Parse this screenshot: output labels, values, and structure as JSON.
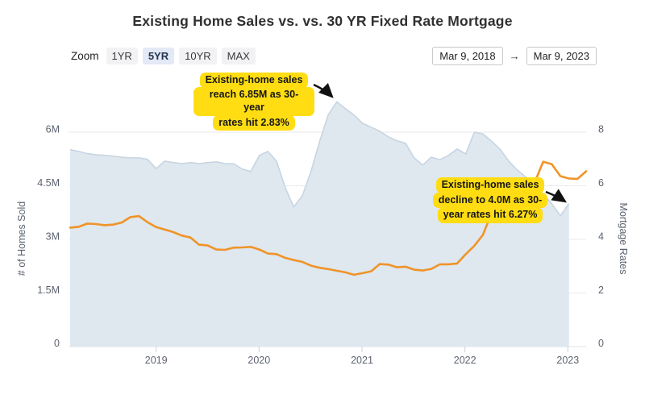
{
  "title": "Existing Home Sales vs. vs. 30 YR Fixed Rate Mortgage",
  "toolbar": {
    "zoom_label": "Zoom",
    "range_buttons": [
      {
        "label": "1YR",
        "selected": false
      },
      {
        "label": "5YR",
        "selected": true
      },
      {
        "label": "10YR",
        "selected": false
      },
      {
        "label": "MAX",
        "selected": false
      }
    ],
    "date_from": "Mar 9, 2018",
    "date_arrow": "→",
    "date_to": "Mar 9, 2023"
  },
  "chart_data": {
    "type": "mixed",
    "frequency": "monthly",
    "x_start": "2018-03",
    "x_end": "2023-03",
    "grid": "horizontal only",
    "legend": "none",
    "x_axis": {
      "ticks": [
        "2019",
        "2020",
        "2021",
        "2022",
        "2023"
      ]
    },
    "left_axis": {
      "label": "# of Homes Sold",
      "ticks": [
        "0",
        "1.5M",
        "3M",
        "4.5M",
        "6M"
      ],
      "ticks_values": [
        0,
        1.5,
        3,
        4.5,
        6
      ],
      "range": [
        0,
        7.5
      ],
      "unit": "millions of homes"
    },
    "right_axis": {
      "label": "Mortgage Rates",
      "ticks": [
        "0",
        "2",
        "4",
        "6",
        "8"
      ],
      "ticks_values": [
        0,
        2,
        4,
        6,
        8
      ],
      "range": [
        0,
        10
      ],
      "unit": "percent"
    },
    "series": [
      {
        "name": "Existing Home Sales",
        "type": "area",
        "axis": "left",
        "fill_color": "#dfe7ef",
        "line_color": "#c7d5e2",
        "values": [
          5.51,
          5.46,
          5.4,
          5.37,
          5.35,
          5.33,
          5.3,
          5.28,
          5.28,
          5.24,
          4.98,
          5.19,
          5.15,
          5.12,
          5.15,
          5.12,
          5.15,
          5.17,
          5.12,
          5.12,
          4.97,
          4.9,
          5.35,
          5.46,
          5.19,
          4.45,
          3.91,
          4.22,
          4.9,
          5.73,
          6.48,
          6.85,
          6.66,
          6.48,
          6.25,
          6.14,
          6.03,
          5.87,
          5.76,
          5.69,
          5.28,
          5.08,
          5.3,
          5.23,
          5.35,
          5.53,
          5.39,
          6.0,
          5.95,
          5.75,
          5.52,
          5.19,
          4.94,
          4.74,
          4.49,
          4.27,
          4.0,
          3.66,
          4.0
        ]
      },
      {
        "name": "30 YR Fixed Rate Mortgage",
        "type": "line",
        "axis": "right",
        "line_color": "#ef9428",
        "values": [
          4.44,
          4.47,
          4.59,
          4.57,
          4.53,
          4.55,
          4.63,
          4.83,
          4.87,
          4.64,
          4.46,
          4.37,
          4.27,
          4.14,
          4.07,
          3.8,
          3.77,
          3.62,
          3.61,
          3.69,
          3.7,
          3.72,
          3.62,
          3.47,
          3.45,
          3.31,
          3.23,
          3.16,
          3.02,
          2.94,
          2.89,
          2.83,
          2.77,
          2.68,
          2.74,
          2.81,
          3.08,
          3.06,
          2.96,
          2.98,
          2.87,
          2.84,
          2.9,
          3.07,
          3.07,
          3.1,
          3.45,
          3.76,
          4.17,
          4.98,
          5.23,
          5.52,
          5.41,
          5.22,
          6.11,
          6.9,
          6.81,
          6.36,
          6.27,
          6.26,
          6.54
        ]
      }
    ],
    "annotations": [
      {
        "lines": [
          "Existing-home sales",
          "reach 6.85M as 30-year",
          "rates hit 2.83%"
        ],
        "highlight_color": "#ffdd12"
      },
      {
        "lines": [
          "Existing-home sales",
          "decline to 4.0M as 30-",
          "year rates hit 6.27%"
        ],
        "highlight_color": "#ffdd12"
      }
    ]
  }
}
